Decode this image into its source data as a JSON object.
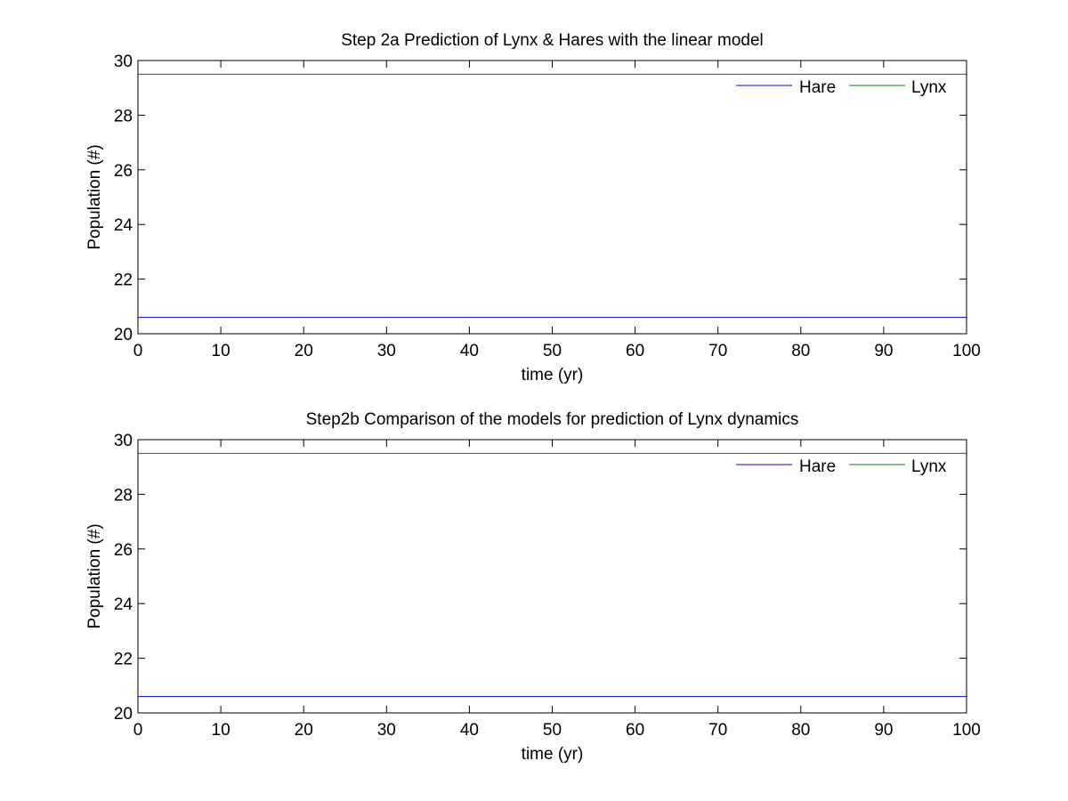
{
  "figure": {
    "background": "#ffffff"
  },
  "chart_data": [
    {
      "type": "line",
      "title": "Step 2a Prediction of Lynx & Hares with the linear model",
      "xlabel": "time (yr)",
      "ylabel": "Population (#)",
      "xlim": [
        0,
        100
      ],
      "ylim": [
        20,
        30
      ],
      "xticks": [
        0,
        10,
        20,
        30,
        40,
        50,
        60,
        70,
        80,
        90,
        100
      ],
      "yticks": [
        20,
        22,
        24,
        26,
        28,
        30
      ],
      "grid": false,
      "legend_position": "top-right",
      "x": [
        0,
        100
      ],
      "series": [
        {
          "name": "Hare",
          "color": "#0000ff",
          "values": [
            20.6,
            20.6
          ]
        },
        {
          "name": "Lynx",
          "color": "#008000",
          "values": [
            29.5,
            29.5
          ]
        }
      ]
    },
    {
      "type": "line",
      "title": "Step2b Comparison of the models for prediction of Lynx dynamics",
      "xlabel": "time (yr)",
      "ylabel": "Population (#)",
      "xlim": [
        0,
        100
      ],
      "ylim": [
        20,
        30
      ],
      "xticks": [
        0,
        10,
        20,
        30,
        40,
        50,
        60,
        70,
        80,
        90,
        100
      ],
      "yticks": [
        20,
        22,
        24,
        26,
        28,
        30
      ],
      "grid": false,
      "legend_position": "top-right",
      "x": [
        0,
        100
      ],
      "series": [
        {
          "name": "Hare",
          "color": "#0000ff",
          "values": [
            20.6,
            20.6
          ]
        },
        {
          "name": "Lynx",
          "color": "#008000",
          "values": [
            29.5,
            29.5
          ]
        }
      ]
    }
  ]
}
